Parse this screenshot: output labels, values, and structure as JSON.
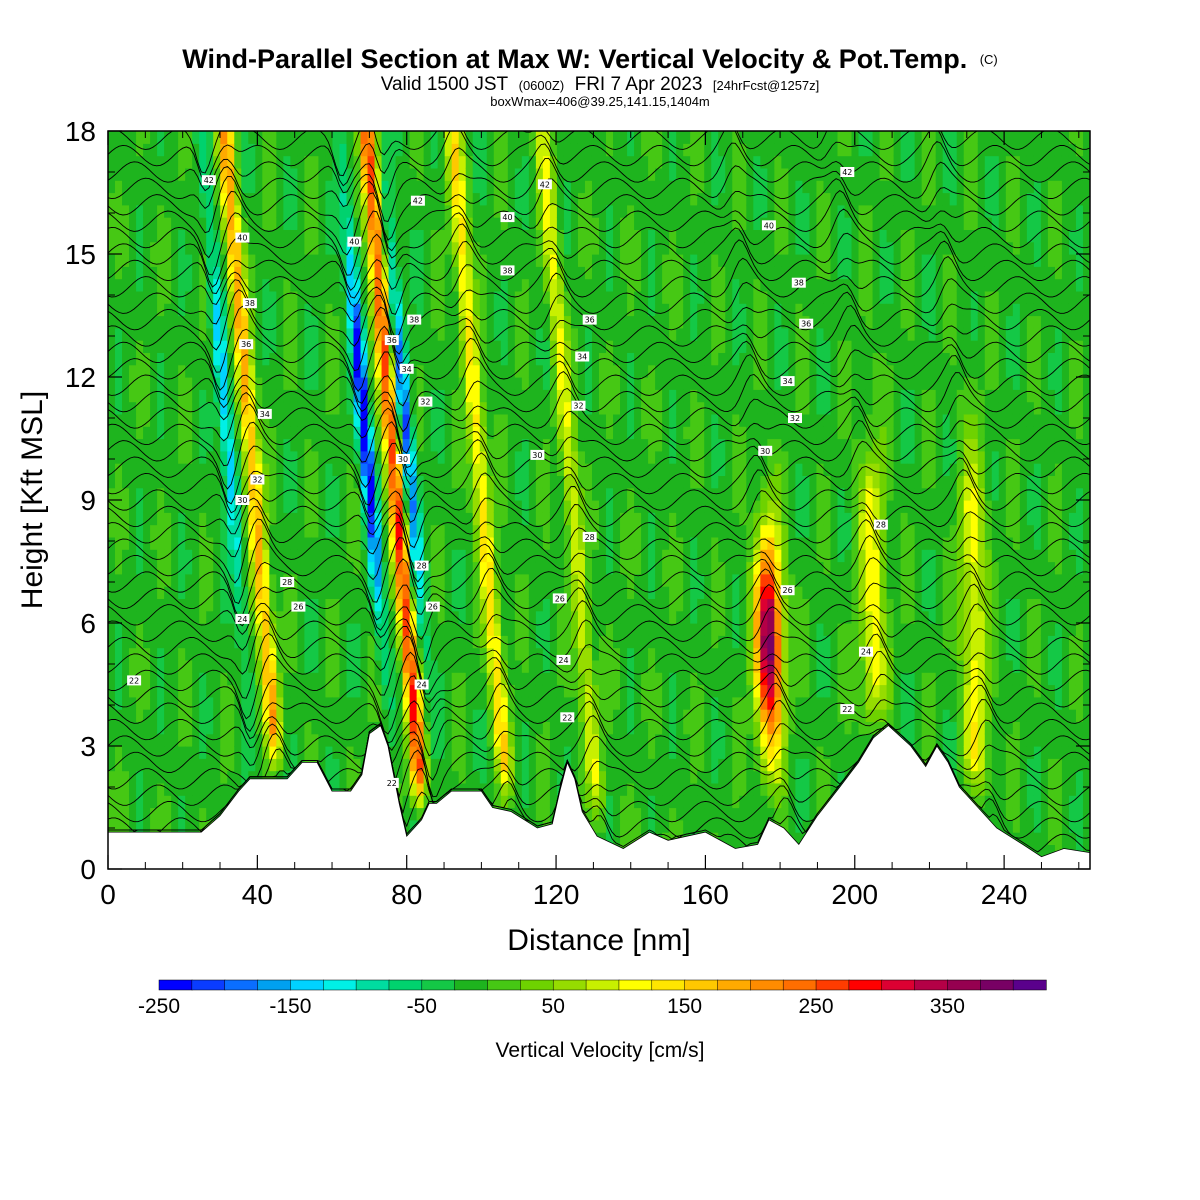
{
  "title": {
    "main": "Wind-Parallel Section at Max W: Vertical Velocity & Pot.Temp.",
    "copyright": "(C)",
    "valid_prefix": "Valid 1500 JST",
    "valid_z": "(0600Z)",
    "valid_date": "FRI 7 Apr 2023",
    "fcst": "[24hrFcst@1257z]",
    "box": "boxWmax=406@39.25,141.15,1404m"
  },
  "chart_data": {
    "type": "heatmap",
    "xlabel": "Distance [nm]",
    "ylabel": "Height [Kft MSL]",
    "xlim": [
      0,
      263
    ],
    "ylim": [
      0,
      18
    ],
    "x_ticks": [
      "0",
      "40",
      "80",
      "120",
      "160",
      "200",
      "240"
    ],
    "y_ticks": [
      "0",
      "3",
      "6",
      "9",
      "12",
      "15",
      "18"
    ],
    "colorbar": {
      "label": "Vertical Velocity [cm/s]",
      "tick_labels": [
        "-250",
        "-150",
        "-50",
        "50",
        "150",
        "250",
        "350"
      ],
      "min": -250,
      "max": 425,
      "step": 25,
      "colors": [
        "#0000ff",
        "#0a3cff",
        "#0a6eff",
        "#00a0f0",
        "#00d2ff",
        "#00f0e6",
        "#00dca0",
        "#00d26e",
        "#14c846",
        "#1eb41e",
        "#46c814",
        "#6ed200",
        "#96dc00",
        "#c8f000",
        "#ffff00",
        "#ffe600",
        "#ffc800",
        "#ffaa00",
        "#ff8c00",
        "#ff6e00",
        "#ff3c00",
        "#ff0000",
        "#dc0032",
        "#b40046",
        "#960050",
        "#780064",
        "#5a008c"
      ]
    },
    "updrafts": [
      {
        "x": 42,
        "z_top": 18,
        "w_max": 200
      },
      {
        "x": 80,
        "z_top": 18,
        "w_max": 275
      },
      {
        "x": 103,
        "z_top": 18,
        "w_max": 150
      },
      {
        "x": 127,
        "z_top": 18,
        "w_max": 110
      },
      {
        "x": 177,
        "z_top": 10,
        "w_max": 406
      },
      {
        "x": 205,
        "z_top": 9,
        "w_max": 120
      },
      {
        "x": 232,
        "z_top": 9,
        "w_max": 120
      }
    ],
    "downdrafts": [
      {
        "x": 36,
        "z_top": 18,
        "w_min": -150
      },
      {
        "x": 73,
        "z_top": 18,
        "w_min": -250
      },
      {
        "x": 84,
        "z_top": 18,
        "w_min": -200
      }
    ],
    "terrain": [
      {
        "x": 0,
        "z": 0.9
      },
      {
        "x": 25,
        "z": 0.9
      },
      {
        "x": 30,
        "z": 1.3
      },
      {
        "x": 35,
        "z": 1.9
      },
      {
        "x": 38,
        "z": 2.2
      },
      {
        "x": 48,
        "z": 2.2
      },
      {
        "x": 52,
        "z": 2.6
      },
      {
        "x": 56,
        "z": 2.6
      },
      {
        "x": 60,
        "z": 1.9
      },
      {
        "x": 65,
        "z": 1.9
      },
      {
        "x": 68,
        "z": 2.3
      },
      {
        "x": 70,
        "z": 3.3
      },
      {
        "x": 73,
        "z": 3.5
      },
      {
        "x": 75,
        "z": 3.0
      },
      {
        "x": 78,
        "z": 1.6
      },
      {
        "x": 80,
        "z": 0.8
      },
      {
        "x": 84,
        "z": 1.2
      },
      {
        "x": 86,
        "z": 1.6
      },
      {
        "x": 88,
        "z": 1.6
      },
      {
        "x": 92,
        "z": 1.9
      },
      {
        "x": 100,
        "z": 1.9
      },
      {
        "x": 103,
        "z": 1.5
      },
      {
        "x": 108,
        "z": 1.4
      },
      {
        "x": 115,
        "z": 1.0
      },
      {
        "x": 119,
        "z": 1.1
      },
      {
        "x": 121,
        "z": 1.9
      },
      {
        "x": 123,
        "z": 2.6
      },
      {
        "x": 125,
        "z": 2.2
      },
      {
        "x": 127,
        "z": 1.4
      },
      {
        "x": 131,
        "z": 0.8
      },
      {
        "x": 138,
        "z": 0.5
      },
      {
        "x": 145,
        "z": 0.9
      },
      {
        "x": 150,
        "z": 0.7
      },
      {
        "x": 160,
        "z": 0.9
      },
      {
        "x": 168,
        "z": 0.5
      },
      {
        "x": 174,
        "z": 0.6
      },
      {
        "x": 177,
        "z": 1.2
      },
      {
        "x": 181,
        "z": 1.0
      },
      {
        "x": 185,
        "z": 0.6
      },
      {
        "x": 190,
        "z": 1.3
      },
      {
        "x": 196,
        "z": 2.0
      },
      {
        "x": 201,
        "z": 2.6
      },
      {
        "x": 205,
        "z": 3.2
      },
      {
        "x": 209,
        "z": 3.5
      },
      {
        "x": 215,
        "z": 3.0
      },
      {
        "x": 219,
        "z": 2.5
      },
      {
        "x": 222,
        "z": 3.0
      },
      {
        "x": 225,
        "z": 2.6
      },
      {
        "x": 228,
        "z": 2.0
      },
      {
        "x": 232,
        "z": 1.6
      },
      {
        "x": 238,
        "z": 1.0
      },
      {
        "x": 245,
        "z": 0.6
      },
      {
        "x": 250,
        "z": 0.3
      },
      {
        "x": 256,
        "z": 0.5
      },
      {
        "x": 263,
        "z": 0.4
      }
    ],
    "theta_labels": [
      {
        "x": 7,
        "z": 4.6,
        "text": "22"
      },
      {
        "x": 36,
        "z": 6.1,
        "text": "24"
      },
      {
        "x": 48,
        "z": 7.0,
        "text": "28"
      },
      {
        "x": 51,
        "z": 6.4,
        "text": "26"
      },
      {
        "x": 36,
        "z": 9.0,
        "text": "30"
      },
      {
        "x": 40,
        "z": 9.5,
        "text": "32"
      },
      {
        "x": 42,
        "z": 11.1,
        "text": "34"
      },
      {
        "x": 37,
        "z": 12.8,
        "text": "36"
      },
      {
        "x": 38,
        "z": 13.8,
        "text": "38"
      },
      {
        "x": 36,
        "z": 15.4,
        "text": "40"
      },
      {
        "x": 27,
        "z": 16.8,
        "text": "42"
      },
      {
        "x": 66,
        "z": 15.3,
        "text": "40"
      },
      {
        "x": 76,
        "z": 12.9,
        "text": "36"
      },
      {
        "x": 80,
        "z": 12.2,
        "text": "34"
      },
      {
        "x": 82,
        "z": 13.4,
        "text": "38"
      },
      {
        "x": 83,
        "z": 16.3,
        "text": "42"
      },
      {
        "x": 85,
        "z": 11.4,
        "text": "32"
      },
      {
        "x": 79,
        "z": 10.0,
        "text": "30"
      },
      {
        "x": 84,
        "z": 7.4,
        "text": "28"
      },
      {
        "x": 87,
        "z": 6.4,
        "text": "26"
      },
      {
        "x": 84,
        "z": 4.5,
        "text": "24"
      },
      {
        "x": 76,
        "z": 2.1,
        "text": "22"
      },
      {
        "x": 107,
        "z": 15.9,
        "text": "40"
      },
      {
        "x": 107,
        "z": 14.6,
        "text": "38"
      },
      {
        "x": 117,
        "z": 16.7,
        "text": "42"
      },
      {
        "x": 129,
        "z": 13.4,
        "text": "36"
      },
      {
        "x": 127,
        "z": 12.5,
        "text": "34"
      },
      {
        "x": 126,
        "z": 11.3,
        "text": "32"
      },
      {
        "x": 115,
        "z": 10.1,
        "text": "30"
      },
      {
        "x": 129,
        "z": 8.1,
        "text": "28"
      },
      {
        "x": 121,
        "z": 6.6,
        "text": "26"
      },
      {
        "x": 122,
        "z": 5.1,
        "text": "24"
      },
      {
        "x": 123,
        "z": 3.7,
        "text": "22"
      },
      {
        "x": 176,
        "z": 10.2,
        "text": "30"
      },
      {
        "x": 182,
        "z": 11.9,
        "text": "34"
      },
      {
        "x": 184,
        "z": 11.0,
        "text": "32"
      },
      {
        "x": 177,
        "z": 15.7,
        "text": "40"
      },
      {
        "x": 185,
        "z": 14.3,
        "text": "38"
      },
      {
        "x": 187,
        "z": 13.3,
        "text": "36"
      },
      {
        "x": 198,
        "z": 17.0,
        "text": "42"
      },
      {
        "x": 207,
        "z": 8.4,
        "text": "28"
      },
      {
        "x": 182,
        "z": 6.8,
        "text": "26"
      },
      {
        "x": 203,
        "z": 5.3,
        "text": "24"
      },
      {
        "x": 198,
        "z": 3.9,
        "text": "22"
      }
    ]
  }
}
